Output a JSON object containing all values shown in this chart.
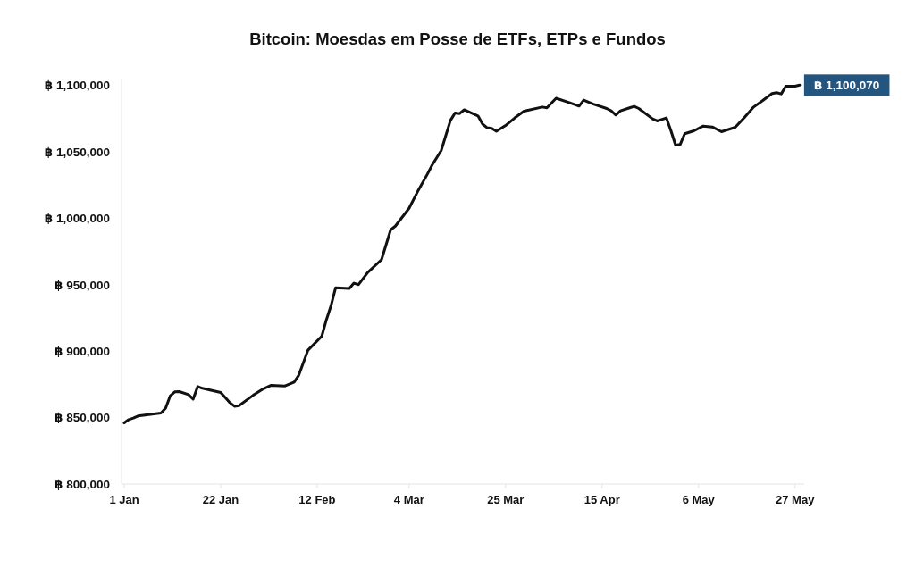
{
  "chart_data": {
    "type": "line",
    "title": "Bitcoin: Moesdas em Posse de ETFs, ETPs e Fundos",
    "x": [
      "--01-01",
      "--01-02",
      "--01-03",
      "--01-04",
      "--01-09",
      "--01-10",
      "--01-11",
      "--01-12",
      "--01-13",
      "--01-15",
      "--01-16",
      "--01-17",
      "--01-18",
      "--01-22",
      "--01-24",
      "--01-25",
      "--01-26",
      "--01-29",
      "--01-31",
      "--02-02",
      "--02-05",
      "--02-07",
      "--02-08",
      "--02-10",
      "--02-13",
      "--02-14",
      "--02-15",
      "--02-16",
      "--02-19",
      "--02-20",
      "--02-21",
      "--02-23",
      "--02-26",
      "--02-28",
      "--03-01",
      "--03-04",
      "--03-06",
      "--03-08",
      "--03-09",
      "--03-11",
      "--03-13",
      "--03-14",
      "--03-15",
      "--03-16",
      "--03-19",
      "--03-20",
      "--03-21",
      "--03-22",
      "--03-23",
      "--03-25",
      "--03-27",
      "--03-29",
      "--04-02",
      "--04-03",
      "--04-05",
      "--04-08",
      "--04-10",
      "--04-11",
      "--04-13",
      "--04-16",
      "--04-17",
      "--04-18",
      "--04-19",
      "--04-21",
      "--04-22",
      "--04-23",
      "--04-26",
      "--04-27",
      "--04-29",
      "--04-30",
      "--05-01",
      "--05-02",
      "--05-03",
      "--05-05",
      "--05-07",
      "--05-09",
      "--05-11",
      "--05-14",
      "--05-16",
      "--05-18",
      "--05-20",
      "--05-22",
      "--05-23",
      "--05-24",
      "--05-25",
      "--05-27",
      "--05-28"
    ],
    "values": [
      846000,
      848500,
      849600,
      851200,
      853400,
      857000,
      866200,
      869300,
      869500,
      867300,
      863900,
      873300,
      872000,
      868900,
      861200,
      858500,
      859000,
      866600,
      871100,
      874300,
      873800,
      876700,
      881900,
      900700,
      911200,
      923500,
      934000,
      947600,
      947100,
      951100,
      950000,
      959200,
      968800,
      991300,
      994000,
      1007400,
      1020900,
      1033200,
      1039800,
      1050900,
      1073500,
      1079100,
      1078700,
      1081500,
      1076900,
      1070700,
      1068000,
      1067500,
      1065300,
      1069700,
      1075400,
      1080500,
      1083600,
      1083000,
      1090200,
      1086800,
      1084300,
      1088800,
      1085900,
      1082500,
      1080700,
      1077600,
      1080700,
      1083000,
      1084100,
      1082500,
      1074700,
      1073100,
      1075400,
      1065700,
      1054900,
      1055400,
      1063500,
      1065700,
      1069300,
      1068600,
      1065000,
      1068400,
      1075800,
      1083600,
      1088500,
      1093700,
      1094400,
      1093500,
      1099300,
      1099300,
      1100070
    ],
    "color": "#111111",
    "xlim": [
      "--01-01",
      "--05-29"
    ],
    "xticks": [
      {
        "value": "--01-01",
        "label": "1 Jan"
      },
      {
        "value": "--01-22",
        "label": "22 Jan"
      },
      {
        "value": "--02-12",
        "label": "12 Feb"
      },
      {
        "value": "--03-04",
        "label": "4 Mar"
      },
      {
        "value": "--03-25",
        "label": "25 Mar"
      },
      {
        "value": "--04-15",
        "label": "15 Apr"
      },
      {
        "value": "--05-06",
        "label": "6 May"
      },
      {
        "value": "--05-27",
        "label": "27 May"
      }
    ],
    "ylim": [
      800000,
      1105000
    ],
    "yticks": [
      {
        "value": 800000,
        "label": "฿ 800,000"
      },
      {
        "value": 850000,
        "label": "฿ 850,000"
      },
      {
        "value": 900000,
        "label": "฿ 900,000"
      },
      {
        "value": 950000,
        "label": "฿ 950,000"
      },
      {
        "value": 1000000,
        "label": "฿ 1,000,000"
      },
      {
        "value": 1050000,
        "label": "฿ 1,050,000"
      },
      {
        "value": 1100000,
        "label": "฿ 1,100,000"
      }
    ],
    "annotations": [
      {
        "text": "฿ 1,100,070",
        "x": "--05-28",
        "y": 1100070
      }
    ]
  }
}
